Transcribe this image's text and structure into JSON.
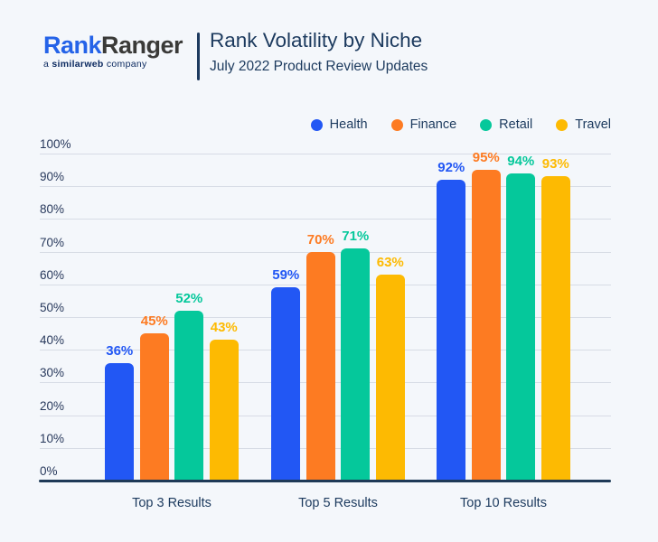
{
  "header": {
    "logo": {
      "name_part_blue": "Rank",
      "name_part_dark": "Ranger",
      "tagline_prefix": "a ",
      "tagline_brand": "similarweb",
      "tagline_suffix": " company"
    },
    "title": "Rank Volatility by Niche",
    "subtitle": "July 2022 Product Review Updates"
  },
  "colors": {
    "background": "#f4f7fb",
    "title_text": "#1c3a5e",
    "logo_blue": "#2563e8",
    "logo_dark": "#3a3a38",
    "tagline_navy": "#0c2a60",
    "gridline": "#d7dce5",
    "axis_line": "#1e3a57",
    "health": "#2257f4",
    "finance": "#fd7b22",
    "retail": "#05c89b",
    "travel": "#fdba02"
  },
  "chart_data": {
    "type": "bar",
    "title": "Rank Volatility by Niche",
    "subtitle": "July 2022 Product Review Updates",
    "categories": [
      "Top 3 Results",
      "Top 5 Results",
      "Top 10 Results"
    ],
    "series": [
      {
        "name": "Health",
        "color": "#2257f4",
        "values": [
          36,
          59,
          92
        ]
      },
      {
        "name": "Finance",
        "color": "#fd7b22",
        "values": [
          45,
          70,
          95
        ]
      },
      {
        "name": "Retail",
        "color": "#05c89b",
        "values": [
          52,
          71,
          94
        ]
      },
      {
        "name": "Travel",
        "color": "#fdba02",
        "values": [
          43,
          63,
          93
        ]
      }
    ],
    "value_suffix": "%",
    "ylim": [
      0,
      100
    ],
    "ytick_step": 10,
    "grid": true,
    "legend_position": "top-right"
  }
}
